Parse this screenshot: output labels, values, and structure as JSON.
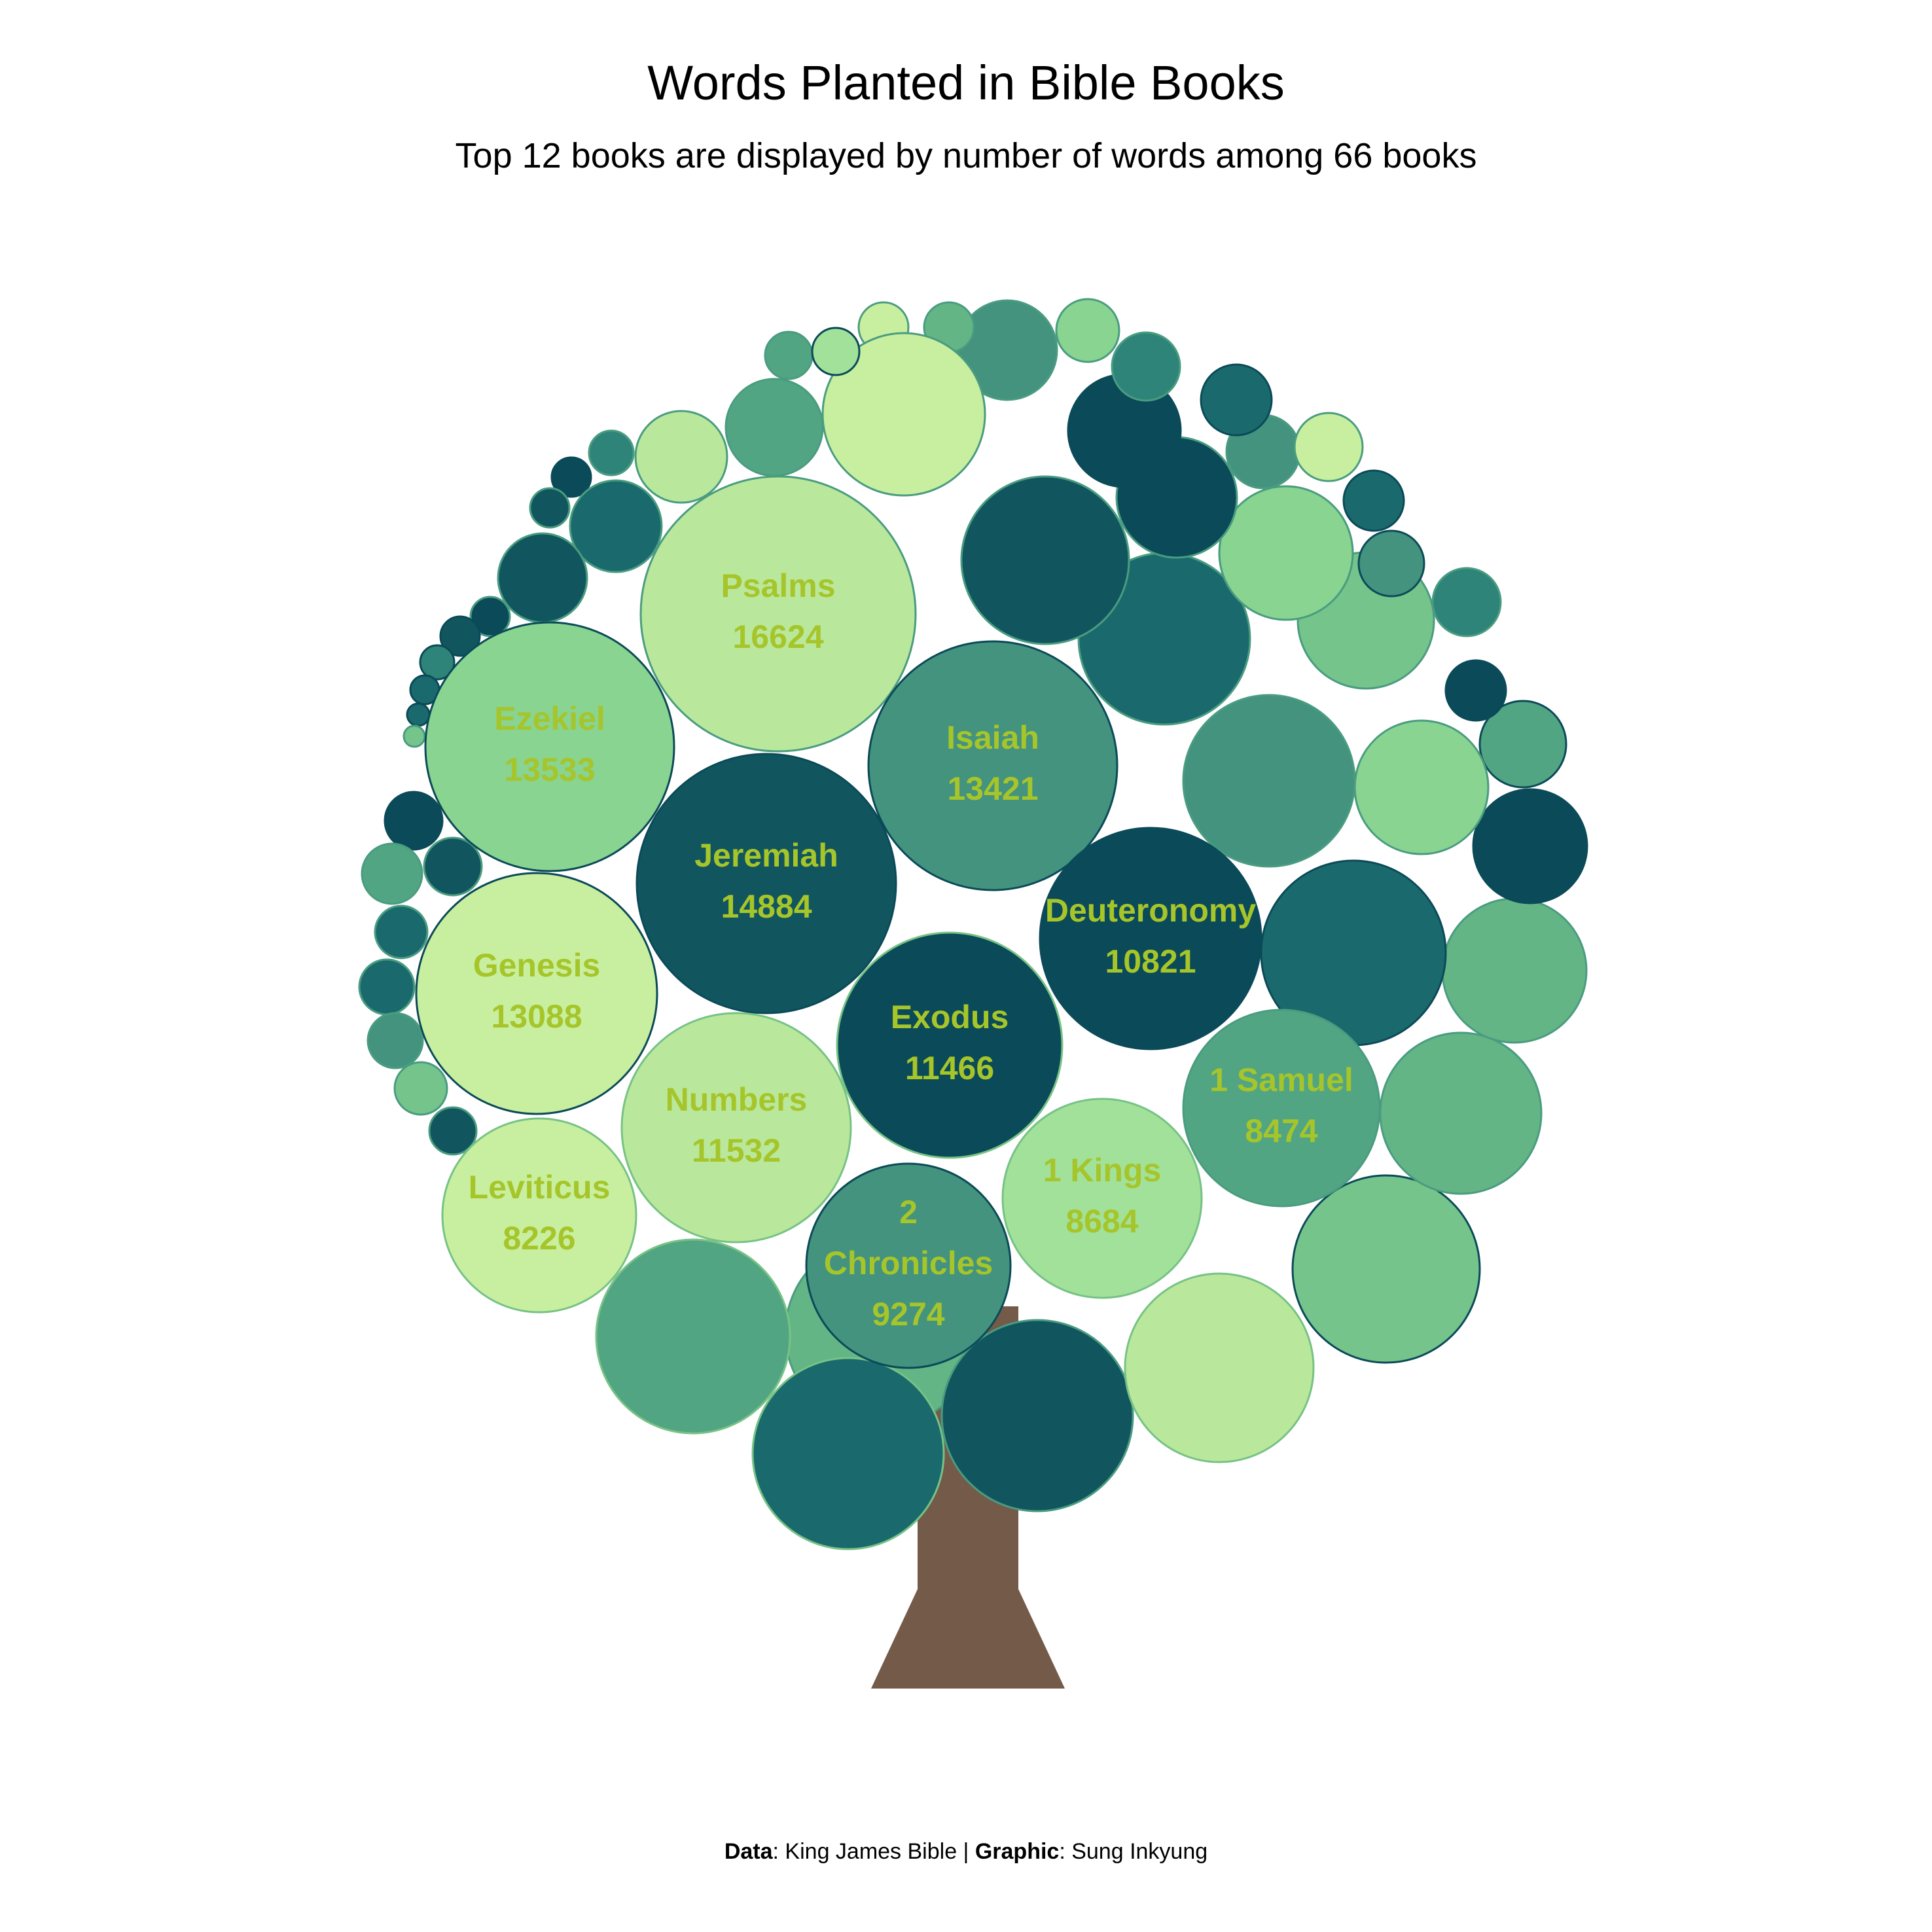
{
  "chart_data": {
    "type": "packed-circles",
    "title": "Words Planted in Bible Books",
    "subtitle": "Top 12 books are displayed by number of words among 66 books",
    "label_color": "#a6c52a",
    "trunk_color": "#745a49",
    "highlighted": [
      {
        "book": "Psalms",
        "words": 16624
      },
      {
        "book": "Jeremiah",
        "words": 14884
      },
      {
        "book": "Ezekiel",
        "words": 13533
      },
      {
        "book": "Isaiah",
        "words": 13421
      },
      {
        "book": "Genesis",
        "words": 13088
      },
      {
        "book": "Numbers",
        "words": 11532
      },
      {
        "book": "Exodus",
        "words": 11466
      },
      {
        "book": "Deuteronomy",
        "words": 10821
      },
      {
        "book": "2 Chronicles",
        "words": 9274
      },
      {
        "book": "1 Kings",
        "words": 8684
      },
      {
        "book": "1 Samuel",
        "words": 8474
      },
      {
        "book": "Leviticus",
        "words": 8226
      }
    ]
  },
  "caption": {
    "data_label": "Data",
    "data_value": ": King James Bible | ",
    "graphic_label": "Graphic",
    "graphic_value": ": Sung Inkyung"
  }
}
